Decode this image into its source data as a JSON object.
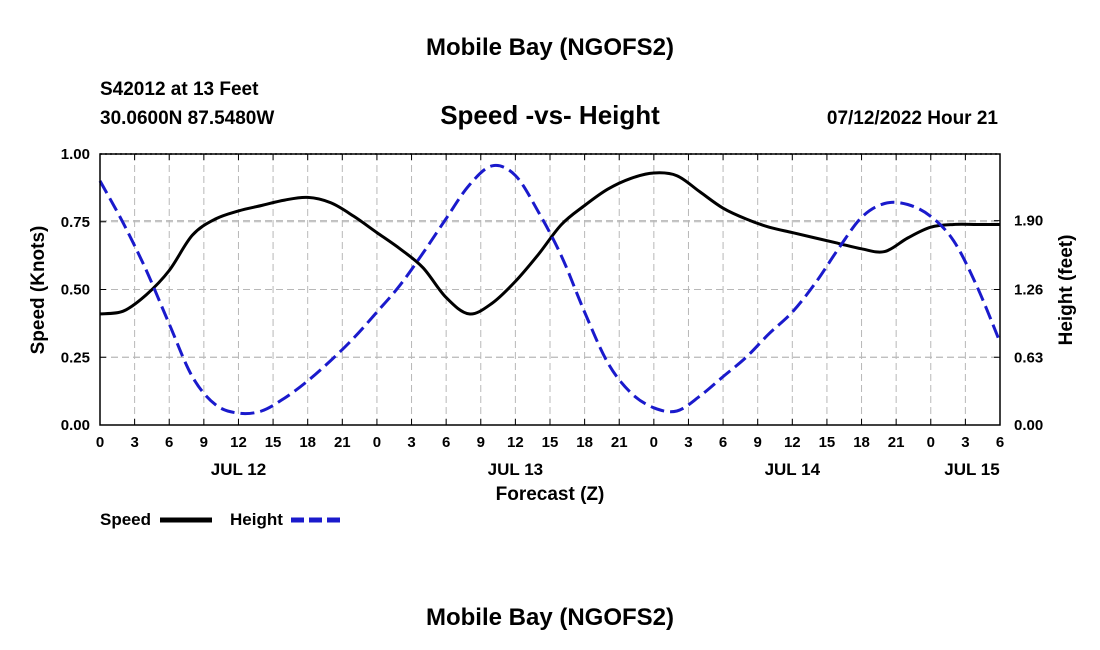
{
  "chart_data": {
    "type": "line",
    "title": "Mobile Bay (NGOFS2)",
    "subtitle": "Speed -vs- Height",
    "station": "S42012 at 13 Feet",
    "location": "30.0600N  87.5480W",
    "datetime": "07/12/2022 Hour 21",
    "footer_title": "Mobile Bay (NGOFS2)",
    "xlabel": "Forecast (Z)",
    "ylabel": "Speed (Knots)",
    "y2label": "Height (feet)",
    "xlim": [
      0,
      78
    ],
    "ylim": [
      0,
      1
    ],
    "y2lim": [
      0,
      2.52
    ],
    "x_ticks": [
      0,
      3,
      6,
      9,
      12,
      15,
      18,
      21,
      24,
      27,
      30,
      33,
      36,
      39,
      42,
      45,
      48,
      51,
      54,
      57,
      60,
      63,
      66,
      69,
      72,
      75,
      78
    ],
    "x_tick_labels": [
      "0",
      "3",
      "6",
      "9",
      "12",
      "15",
      "18",
      "21",
      "0",
      "3",
      "6",
      "9",
      "12",
      "15",
      "18",
      "21",
      "0",
      "3",
      "6",
      "9",
      "12",
      "15",
      "18",
      "21",
      "0",
      "3",
      "6"
    ],
    "date_labels": [
      {
        "text": "JUL 12",
        "x": 12
      },
      {
        "text": "JUL 13",
        "x": 36
      },
      {
        "text": "JUL 14",
        "x": 60
      },
      {
        "text": "JUL 15",
        "x": 78
      }
    ],
    "y_ticks": [
      0,
      0.25,
      0.5,
      0.75,
      1.0
    ],
    "y_tick_labels": [
      "0.00",
      "0.25",
      "0.50",
      "0.75",
      "1.00"
    ],
    "y2_ticks": [
      0,
      0.63,
      1.26,
      1.9
    ],
    "y2_tick_labels": [
      "0.00",
      "0.63",
      "1.26",
      "1.90"
    ],
    "grid": true,
    "legend_position": "bottom-left",
    "series": [
      {
        "name": "Speed",
        "axis": "left",
        "color": "#000000",
        "style": "solid",
        "x": [
          0,
          2,
          4,
          6,
          8,
          10,
          12,
          14,
          16,
          18,
          20,
          22,
          24,
          26,
          28,
          30,
          32,
          34,
          36,
          38,
          40,
          42,
          44,
          46,
          48,
          50,
          52,
          54,
          56,
          58,
          60,
          62,
          64,
          66,
          68,
          70,
          72,
          74,
          76,
          78
        ],
        "values": [
          0.41,
          0.42,
          0.48,
          0.57,
          0.7,
          0.76,
          0.79,
          0.81,
          0.83,
          0.84,
          0.82,
          0.77,
          0.71,
          0.65,
          0.58,
          0.47,
          0.41,
          0.45,
          0.53,
          0.63,
          0.74,
          0.81,
          0.87,
          0.91,
          0.93,
          0.92,
          0.86,
          0.8,
          0.76,
          0.73,
          0.71,
          0.69,
          0.67,
          0.65,
          0.64,
          0.69,
          0.73,
          0.74,
          0.74,
          0.74
        ]
      },
      {
        "name": "Height",
        "axis": "right",
        "color": "#1a1acc",
        "style": "dashed",
        "x": [
          0,
          2,
          4,
          6,
          8,
          10,
          12,
          14,
          16,
          18,
          20,
          22,
          24,
          26,
          28,
          30,
          32,
          34,
          36,
          38,
          40,
          42,
          44,
          46,
          48,
          50,
          52,
          54,
          56,
          58,
          60,
          62,
          64,
          66,
          68,
          70,
          72,
          74,
          76,
          78
        ],
        "values": [
          2.27,
          1.88,
          1.44,
          0.94,
          0.45,
          0.19,
          0.11,
          0.13,
          0.25,
          0.41,
          0.6,
          0.81,
          1.05,
          1.3,
          1.6,
          1.92,
          2.23,
          2.41,
          2.32,
          1.98,
          1.57,
          1.05,
          0.58,
          0.3,
          0.16,
          0.13,
          0.27,
          0.45,
          0.63,
          0.85,
          1.05,
          1.32,
          1.64,
          1.93,
          2.06,
          2.05,
          1.94,
          1.71,
          1.29,
          0.77
        ]
      }
    ]
  }
}
